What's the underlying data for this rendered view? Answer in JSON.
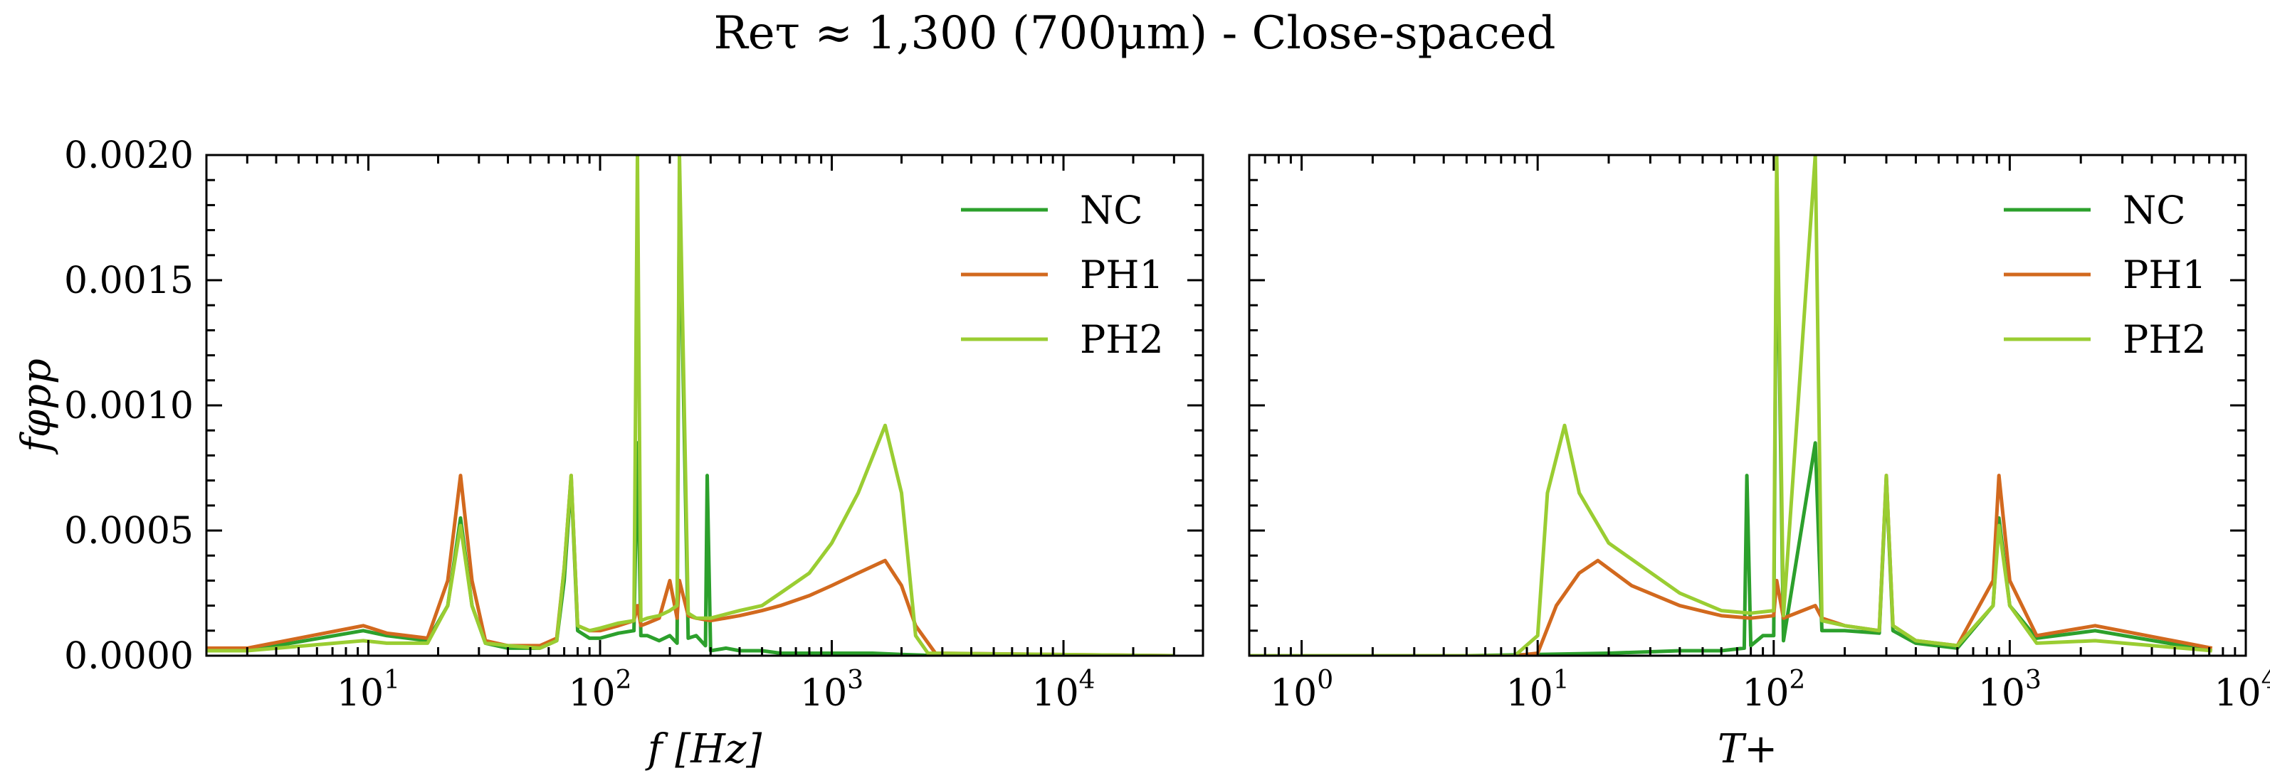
{
  "figure": {
    "title": "Reτ ≈ 1,300 (700μm) - Close-spaced"
  },
  "colors": {
    "NC": "#2ca02c",
    "PH1": "#d2691e",
    "PH2": "#9acd32"
  },
  "chart_data": [
    {
      "type": "line",
      "title": "",
      "xlabel": "f [Hz]",
      "ylabel": "fφpp",
      "xscale": "log",
      "xlim": [
        2,
        40000
      ],
      "ylim": [
        0,
        0.002
      ],
      "yticks": [
        "0.0000",
        "0.0005",
        "0.0010",
        "0.0015",
        "0.0020"
      ],
      "xticks": [
        {
          "base": "10",
          "exp": "1",
          "value": 10
        },
        {
          "base": "10",
          "exp": "2",
          "value": 100
        },
        {
          "base": "10",
          "exp": "3",
          "value": 1000
        },
        {
          "base": "10",
          "exp": "4",
          "value": 10000
        }
      ],
      "legend": {
        "position": "top-right",
        "entries": [
          "NC",
          "PH1",
          "PH2"
        ]
      },
      "series": [
        {
          "name": "NC",
          "color": "#2ca02c",
          "x": [
            2,
            3,
            9.5,
            12,
            18,
            22,
            25,
            28,
            32,
            40,
            55,
            65,
            70,
            75,
            80,
            90,
            100,
            120,
            140,
            145,
            150,
            160,
            180,
            200,
            215,
            220,
            240,
            260,
            285,
            290,
            300,
            350,
            400,
            500,
            600,
            800,
            1000,
            1500,
            2000,
            2500,
            5000,
            30000
          ],
          "y": [
            2e-05,
            2e-05,
            0.0001,
            8e-05,
            6e-05,
            0.0002,
            0.00055,
            0.0002,
            5e-05,
            3e-05,
            3e-05,
            6e-05,
            0.0003,
            0.0007,
            0.0001,
            7e-05,
            7e-05,
            9e-05,
            0.0001,
            0.00085,
            8e-05,
            8e-05,
            6e-05,
            8e-05,
            5e-05,
            0.0019,
            7e-05,
            8e-05,
            4e-05,
            0.00072,
            2e-05,
            3e-05,
            2e-05,
            2e-05,
            1e-05,
            1e-05,
            1e-05,
            1e-05,
            5e-06,
            2e-06,
            0,
            0
          ]
        },
        {
          "name": "PH1",
          "color": "#d2691e",
          "x": [
            2,
            3,
            9.5,
            12,
            18,
            22,
            25,
            28,
            32,
            40,
            55,
            65,
            70,
            75,
            80,
            90,
            100,
            120,
            140,
            145,
            150,
            160,
            180,
            200,
            215,
            220,
            240,
            260,
            300,
            400,
            500,
            600,
            800,
            1000,
            1300,
            1700,
            2000,
            2300,
            2800,
            30000
          ],
          "y": [
            3e-05,
            3e-05,
            0.00012,
            9e-05,
            7e-05,
            0.0003,
            0.00072,
            0.0003,
            6e-05,
            4e-05,
            4e-05,
            7e-05,
            0.00035,
            0.00072,
            0.00012,
            0.0001,
            0.0001,
            0.00012,
            0.00014,
            0.0002,
            0.00012,
            0.00013,
            0.00015,
            0.0003,
            0.00015,
            0.0003,
            0.00016,
            0.00015,
            0.00014,
            0.00016,
            0.00018,
            0.0002,
            0.00024,
            0.00028,
            0.00033,
            0.00038,
            0.00028,
            0.00012,
            1e-05,
            0
          ]
        },
        {
          "name": "PH2",
          "color": "#9acd32",
          "x": [
            2,
            3,
            9.5,
            12,
            18,
            22,
            25,
            28,
            32,
            40,
            55,
            65,
            70,
            75,
            80,
            90,
            100,
            120,
            140,
            145,
            150,
            160,
            180,
            200,
            215,
            220,
            240,
            260,
            300,
            400,
            500,
            600,
            800,
            1000,
            1300,
            1700,
            2000,
            2300,
            2600,
            30000
          ],
          "y": [
            2e-05,
            2e-05,
            6e-05,
            5e-05,
            5e-05,
            0.0002,
            0.00052,
            0.0002,
            5e-05,
            4e-05,
            3e-05,
            6e-05,
            0.00035,
            0.00072,
            0.00012,
            0.0001,
            0.00011,
            0.00013,
            0.00014,
            0.002,
            0.00014,
            0.00015,
            0.00016,
            0.00018,
            0.0002,
            0.002,
            0.00017,
            0.00015,
            0.00015,
            0.00018,
            0.0002,
            0.00025,
            0.00033,
            0.00045,
            0.00065,
            0.00092,
            0.00065,
            8e-05,
            1e-05,
            0
          ]
        }
      ]
    },
    {
      "type": "line",
      "title": "",
      "xlabel": "T+",
      "ylabel": "",
      "xscale": "log",
      "xlim": [
        0.6,
        10000
      ],
      "ylim": [
        0,
        0.002
      ],
      "xticks": [
        {
          "base": "10",
          "exp": "0",
          "value": 1
        },
        {
          "base": "10",
          "exp": "1",
          "value": 10
        },
        {
          "base": "10",
          "exp": "2",
          "value": 100
        },
        {
          "base": "10",
          "exp": "3",
          "value": 1000
        },
        {
          "base": "10",
          "exp": "4",
          "value": 10000
        }
      ],
      "legend": {
        "position": "top-right",
        "entries": [
          "NC",
          "PH1",
          "PH2"
        ]
      },
      "series": [
        {
          "name": "NC",
          "color": "#2ca02c",
          "x": [
            0.6,
            5,
            10,
            20,
            40,
            60,
            75,
            77,
            80,
            90,
            100,
            103,
            110,
            150,
            160,
            200,
            280,
            300,
            320,
            400,
            600,
            850,
            900,
            1000,
            1300,
            2300,
            7200
          ],
          "y": [
            0,
            0,
            5e-06,
            1e-05,
            2e-05,
            2e-05,
            3e-05,
            0.00072,
            4e-05,
            8e-05,
            8e-05,
            0.0019,
            6e-05,
            0.00085,
            0.0001,
            0.0001,
            9e-05,
            0.0007,
            0.0001,
            5e-05,
            3e-05,
            0.0002,
            0.00055,
            0.0002,
            7e-05,
            0.0001,
            2e-05
          ]
        },
        {
          "name": "PH1",
          "color": "#d2691e",
          "x": [
            0.6,
            8,
            10,
            12,
            15,
            18,
            25,
            40,
            60,
            80,
            100,
            103,
            110,
            150,
            160,
            200,
            280,
            300,
            320,
            400,
            600,
            850,
            900,
            1000,
            1300,
            2300,
            7200
          ],
          "y": [
            0,
            0,
            1e-05,
            0.0002,
            0.00033,
            0.00038,
            0.00028,
            0.0002,
            0.00016,
            0.00015,
            0.00016,
            0.0003,
            0.00015,
            0.0002,
            0.00015,
            0.00012,
            0.0001,
            0.00072,
            0.00012,
            6e-05,
            4e-05,
            0.0003,
            0.00072,
            0.0003,
            8e-05,
            0.00012,
            3e-05
          ]
        },
        {
          "name": "PH2",
          "color": "#9acd32",
          "x": [
            0.6,
            8,
            10,
            11,
            13,
            15,
            20,
            40,
            60,
            80,
            100,
            103,
            110,
            150,
            160,
            200,
            280,
            300,
            320,
            400,
            600,
            850,
            900,
            1000,
            1300,
            2300,
            7200
          ],
          "y": [
            0,
            0,
            8e-05,
            0.00065,
            0.00092,
            0.00065,
            0.00045,
            0.00025,
            0.00018,
            0.00017,
            0.00018,
            0.002,
            0.00016,
            0.002,
            0.00014,
            0.00012,
            0.0001,
            0.00072,
            0.00012,
            6e-05,
            4e-05,
            0.0002,
            0.00052,
            0.0002,
            5e-05,
            6e-05,
            2e-05
          ]
        }
      ]
    }
  ]
}
